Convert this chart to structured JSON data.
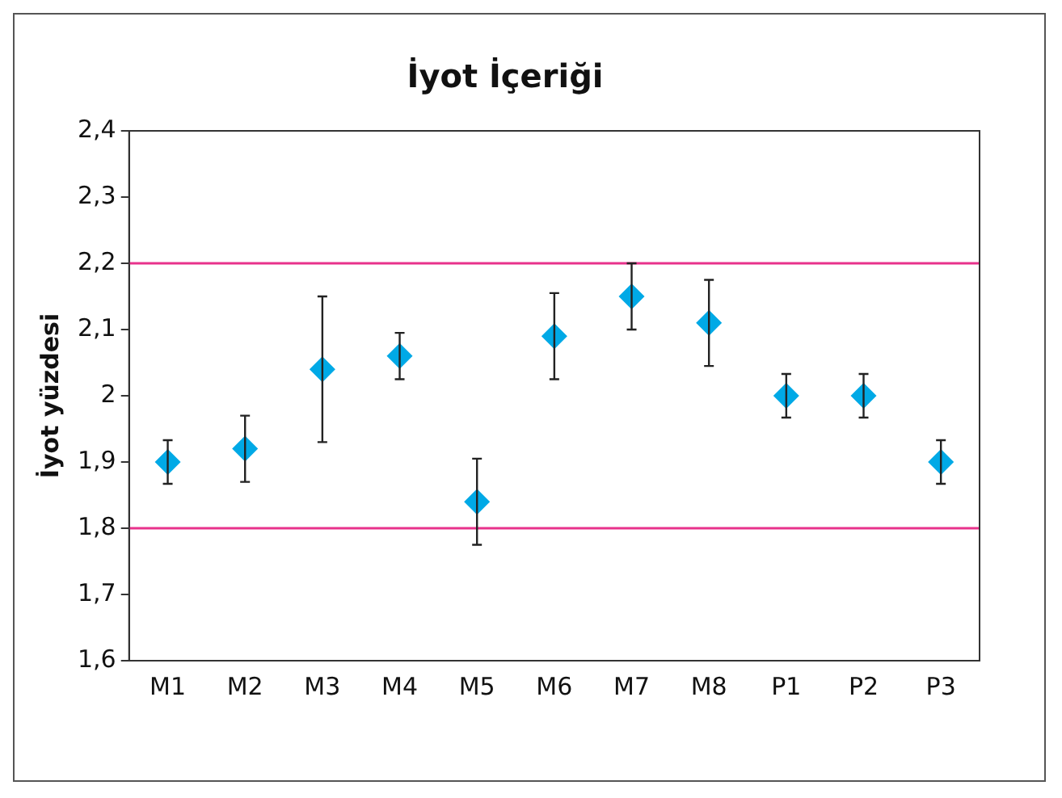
{
  "chart_data": {
    "type": "scatter",
    "title": "İyot İçeriği",
    "ylabel": "İyot yüzdesi",
    "categories": [
      "M1",
      "M2",
      "M3",
      "M4",
      "M5",
      "M6",
      "M7",
      "M8",
      "P1",
      "P2",
      "P3"
    ],
    "values": [
      1.9,
      1.92,
      2.04,
      2.06,
      1.84,
      2.09,
      2.15,
      2.11,
      2.0,
      2.0,
      1.9
    ],
    "errors": [
      0.033,
      0.05,
      0.11,
      0.035,
      0.065,
      0.065,
      0.05,
      0.065,
      0.033,
      0.033,
      0.033
    ],
    "color": "#00a9e6",
    "marker": "diamond",
    "ylim": [
      1.6,
      2.4
    ],
    "yticks": [
      {
        "value": 1.6,
        "label": "1,6"
      },
      {
        "value": 1.7,
        "label": "1,7"
      },
      {
        "value": 1.8,
        "label": "1,8"
      },
      {
        "value": 1.9,
        "label": "1,9"
      },
      2,
      {
        "value": 2.1,
        "label": "2,1"
      },
      {
        "value": 2.2,
        "label": "2,2"
      },
      {
        "value": 2.3,
        "label": "2,3"
      },
      {
        "value": 2.4,
        "label": "2,4"
      }
    ],
    "ref_lines": [
      {
        "axis": "y",
        "value": 2.2,
        "color": "#e8328c"
      },
      {
        "axis": "y",
        "value": 1.8,
        "color": "#e8328c"
      }
    ],
    "grid": false,
    "legend": false
  }
}
